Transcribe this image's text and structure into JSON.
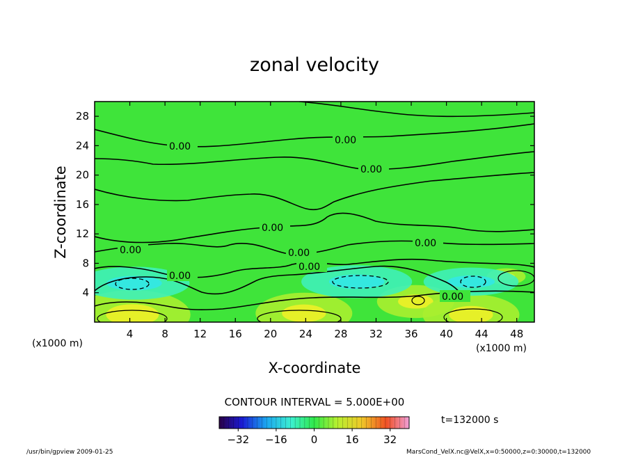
{
  "chart_data": {
    "type": "heatmap",
    "title": "zonal velocity",
    "xlabel": "X-coordinate",
    "ylabel": "Z-coordinate",
    "x_unit": "(x1000 m)",
    "y_unit": "(x1000 m)",
    "xlim": [
      0,
      50
    ],
    "ylim": [
      0,
      30
    ],
    "x_ticks": [
      "4",
      "8",
      "12",
      "16",
      "20",
      "24",
      "28",
      "32",
      "36",
      "40",
      "44",
      "48"
    ],
    "y_ticks": [
      "4",
      "8",
      "12",
      "16",
      "20",
      "24",
      "28"
    ],
    "contour_interval_text": "CONTOUR INTERVAL = 5.000E+00",
    "contour_label": "0.00",
    "colorbar_ticks": [
      "-32",
      "-16",
      "0",
      "16",
      "32"
    ],
    "colorbar_range": [
      -40,
      40
    ],
    "time_text": "t=132000 s",
    "positive_cores": [
      {
        "x": 4.3,
        "z": 1.0,
        "value": 12
      },
      {
        "x": 23.8,
        "z": 1.2,
        "value": 10
      },
      {
        "x": 36.5,
        "z": 2.8,
        "value": 8
      },
      {
        "x": 42.8,
        "z": 1.0,
        "value": 10
      },
      {
        "x": 46.8,
        "z": 6.2,
        "value": 4
      }
    ],
    "negative_cores": [
      {
        "x": 4.5,
        "z": 5.3,
        "value": -7
      },
      {
        "x": 29.8,
        "z": 5.5,
        "value": -7
      },
      {
        "x": 42.8,
        "z": 5.5,
        "value": -6
      }
    ]
  },
  "footer": {
    "left": "/usr/bin/gpview   2009-01-25",
    "right": "MarsCond_VelX.nc@VelX,x=0:50000,z=0:30000,t=132000"
  }
}
